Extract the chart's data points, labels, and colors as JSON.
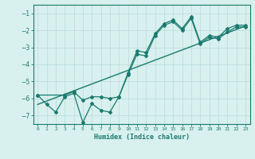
{
  "xlabel": "Humidex (Indice chaleur)",
  "xlim": [
    -0.5,
    23.5
  ],
  "ylim": [
    -7.5,
    -0.5
  ],
  "yticks": [
    -7,
    -6,
    -5,
    -4,
    -3,
    -2,
    -1
  ],
  "xticks": [
    0,
    1,
    2,
    3,
    4,
    5,
    6,
    7,
    8,
    9,
    10,
    11,
    12,
    13,
    14,
    15,
    16,
    17,
    18,
    19,
    20,
    21,
    22,
    23
  ],
  "line1_x": [
    0,
    1,
    2,
    3,
    4,
    5,
    6,
    7,
    8,
    9,
    10,
    11,
    12,
    13,
    14,
    15,
    16,
    17,
    18,
    19,
    20,
    21,
    22,
    23
  ],
  "line1_y": [
    -5.8,
    -6.35,
    -6.8,
    -5.9,
    -5.7,
    -7.4,
    -6.3,
    -6.7,
    -6.8,
    -5.9,
    -4.6,
    -3.4,
    -3.5,
    -2.3,
    -1.7,
    -1.5,
    -2.0,
    -1.3,
    -2.8,
    -2.4,
    -2.5,
    -2.1,
    -1.8,
    -1.8
  ],
  "line2_x": [
    0,
    3,
    4,
    5,
    6,
    7,
    8,
    9,
    10,
    11,
    12,
    13,
    14,
    15,
    16,
    17,
    18,
    19,
    20,
    21,
    22,
    23
  ],
  "line2_y": [
    -5.8,
    -5.8,
    -5.6,
    -6.1,
    -5.9,
    -5.9,
    -6.0,
    -5.9,
    -4.5,
    -3.2,
    -3.3,
    -2.2,
    -1.6,
    -1.4,
    -1.9,
    -1.2,
    -2.7,
    -2.3,
    -2.4,
    -1.9,
    -1.7,
    -1.7
  ],
  "trend_x": [
    0,
    23
  ],
  "trend_y": [
    -6.35,
    -1.75
  ],
  "line_color": "#1a7a6e",
  "bg_color": "#d8f0ee",
  "grid_color": "#b8ddd9"
}
